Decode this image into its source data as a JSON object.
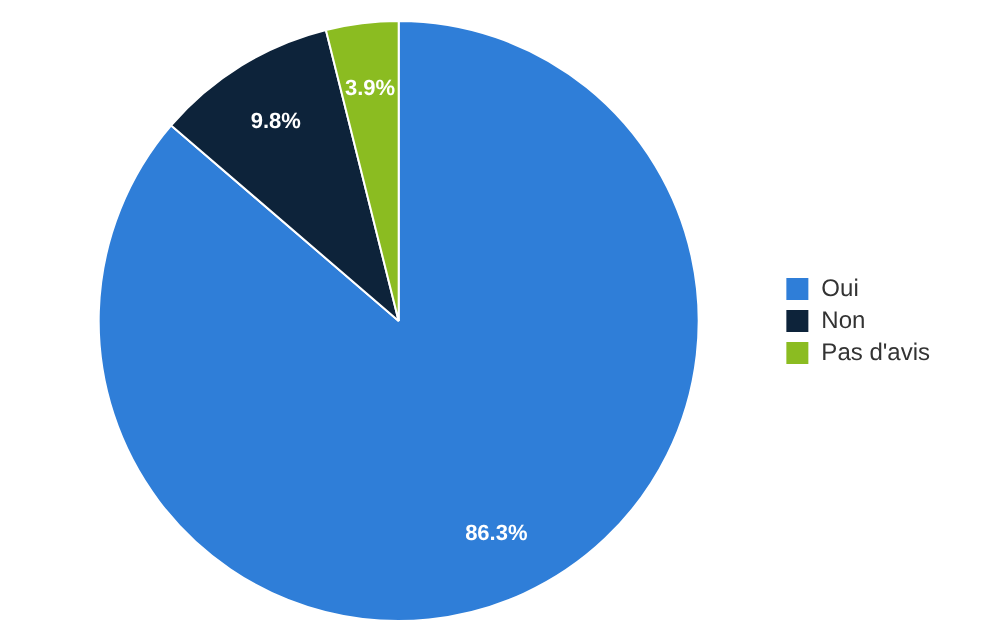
{
  "chart_data": {
    "type": "pie",
    "categories": [
      "Oui",
      "Non",
      "Pas d'avis"
    ],
    "values": [
      86.3,
      9.8,
      3.9
    ],
    "colors": [
      "#2f7ed8",
      "#0d233a",
      "#8bbc21"
    ],
    "value_labels": [
      "86.3%",
      "9.8%",
      "3.9%"
    ],
    "legend": "right"
  }
}
